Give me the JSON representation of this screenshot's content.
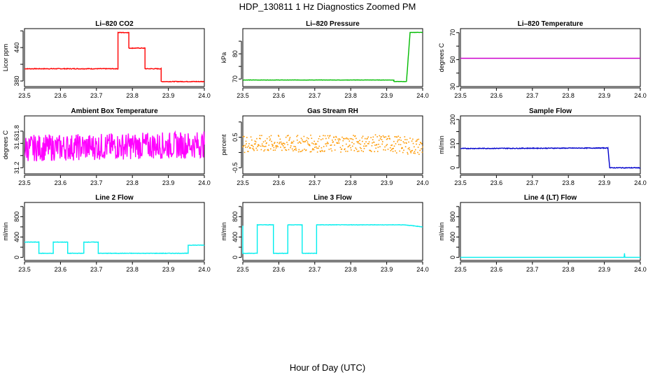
{
  "figure": {
    "title": "HDP_130811  1 Hz Diagnostics Zoomed PM",
    "xlabel": "Hour of Day (UTC)"
  },
  "chart_data": [
    {
      "type": "line",
      "title": "Li–820 CO2",
      "ylabel": "Licor ppm",
      "color": "#ff0000",
      "xlim": [
        23.5,
        24.0
      ],
      "ylim": [
        370,
        474
      ],
      "xticks": [
        "23.5",
        "23.6",
        "23.7",
        "23.8",
        "23.9",
        "24.0"
      ],
      "yticks": [
        {
          "v": 380,
          "label": "380"
        },
        {
          "v": 410,
          "label": ""
        },
        {
          "v": 440,
          "label": "440"
        },
        {
          "v": 470,
          "label": ""
        }
      ],
      "noise": 0.6,
      "series": [
        {
          "name": "CO2",
          "points": [
            [
              23.5,
              402
            ],
            [
              23.76,
              402
            ],
            [
              23.76,
              467
            ],
            [
              23.79,
              467
            ],
            [
              23.79,
              439
            ],
            [
              23.835,
              439
            ],
            [
              23.835,
              402
            ],
            [
              23.88,
              402
            ],
            [
              23.88,
              379
            ],
            [
              24.0,
              379
            ]
          ]
        }
      ]
    },
    {
      "type": "line",
      "title": "Li–820 Pressure",
      "ylabel": "kPa",
      "color": "#00bb00",
      "xlim": [
        23.5,
        24.0
      ],
      "ylim": [
        67,
        90
      ],
      "xticks": [
        "23.5",
        "23.6",
        "23.7",
        "23.8",
        "23.9",
        "24.0"
      ],
      "yticks": [
        {
          "v": 70,
          "label": "70"
        },
        {
          "v": 75,
          "label": ""
        },
        {
          "v": 80,
          "label": "80"
        },
        {
          "v": 85,
          "label": ""
        }
      ],
      "noise": 0.05,
      "series": [
        {
          "name": "Pressure",
          "points": [
            [
              23.5,
              69.6
            ],
            [
              23.92,
              69.6
            ],
            [
              23.92,
              69.0
            ],
            [
              23.955,
              69.0
            ],
            [
              23.965,
              88.5
            ],
            [
              24.0,
              88.5
            ]
          ]
        }
      ]
    },
    {
      "type": "line",
      "title": "Li–820 Temperature",
      "ylabel": "degrees C",
      "color": "#cc00cc",
      "xlim": [
        23.5,
        24.0
      ],
      "ylim": [
        30,
        73
      ],
      "xticks": [
        "23.5",
        "23.6",
        "23.7",
        "23.8",
        "23.9",
        "24.0"
      ],
      "yticks": [
        {
          "v": 30,
          "label": "30"
        },
        {
          "v": 40,
          "label": ""
        },
        {
          "v": 50,
          "label": "50"
        },
        {
          "v": 60,
          "label": ""
        },
        {
          "v": 70,
          "label": "70"
        }
      ],
      "noise": 0,
      "series": [
        {
          "name": "Temperature",
          "points": [
            [
              23.5,
              51
            ],
            [
              24.0,
              51
            ]
          ]
        }
      ]
    },
    {
      "type": "line",
      "title": "Ambient Box Temperature",
      "ylabel": "degrees C",
      "color": "#ff00ff",
      "xlim": [
        23.5,
        24.0
      ],
      "ylim": [
        31.1,
        32.05
      ],
      "xticks": [
        "23.5",
        "23.6",
        "23.7",
        "23.8",
        "23.9",
        "24.0"
      ],
      "yticks": [
        {
          "v": 31.2,
          "label": "31.2"
        },
        {
          "v": 31.4,
          "label": ""
        },
        {
          "v": 31.6,
          "label": "31.6"
        },
        {
          "v": 31.8,
          "label": "31.8"
        }
      ],
      "noise": 0.22,
      "series": [
        {
          "name": "Box Temperature",
          "points": [
            [
              23.5,
              31.52
            ],
            [
              24.0,
              31.58
            ]
          ]
        }
      ]
    },
    {
      "type": "scatter",
      "title": "Gas Stream RH",
      "ylabel": "percent",
      "color": "#ff9900",
      "xlim": [
        23.5,
        24.0
      ],
      "ylim": [
        -0.7,
        1.2
      ],
      "xticks": [
        "23.5",
        "23.6",
        "23.7",
        "23.8",
        "23.9",
        "24.0"
      ],
      "yticks": [
        {
          "v": -0.5,
          "label": "-0.5"
        },
        {
          "v": 0,
          "label": ""
        },
        {
          "v": 0.5,
          "label": "0.5"
        },
        {
          "v": 1.0,
          "label": ""
        }
      ],
      "noise": 0.28,
      "series": [
        {
          "name": "RH",
          "points": [
            [
              23.5,
              0.28
            ],
            [
              23.9,
              0.3
            ],
            [
              24.0,
              0.18
            ]
          ]
        }
      ]
    },
    {
      "type": "line",
      "title": "Sample Flow",
      "ylabel": "ml/min",
      "color": "#0000cc",
      "xlim": [
        23.5,
        24.0
      ],
      "ylim": [
        -25,
        215
      ],
      "xticks": [
        "23.5",
        "23.6",
        "23.7",
        "23.8",
        "23.9",
        "24.0"
      ],
      "yticks": [
        {
          "v": 0,
          "label": "0"
        },
        {
          "v": 50,
          "label": ""
        },
        {
          "v": 100,
          "label": "100"
        },
        {
          "v": 150,
          "label": ""
        },
        {
          "v": 200,
          "label": "200"
        }
      ],
      "noise": 1.5,
      "series": [
        {
          "name": "Sample Flow",
          "points": [
            [
              23.5,
              80
            ],
            [
              23.91,
              82
            ],
            [
              23.915,
              0
            ],
            [
              24.0,
              0
            ]
          ]
        }
      ]
    },
    {
      "type": "line",
      "title": "Line 2 Flow",
      "ylabel": "ml/min",
      "color": "#00eeee",
      "xlim": [
        23.5,
        24.0
      ],
      "ylim": [
        -60,
        1080
      ],
      "xticks": [
        "23.5",
        "23.6",
        "23.7",
        "23.8",
        "23.9",
        "24.0"
      ],
      "yticks": [
        {
          "v": 0,
          "label": "0"
        },
        {
          "v": 200,
          "label": ""
        },
        {
          "v": 400,
          "label": "400"
        },
        {
          "v": 600,
          "label": ""
        },
        {
          "v": 800,
          "label": "800"
        },
        {
          "v": 1000,
          "label": ""
        }
      ],
      "noise": 4,
      "series": [
        {
          "name": "Line 2",
          "points": [
            [
              23.5,
              300
            ],
            [
              23.54,
              300
            ],
            [
              23.54,
              80
            ],
            [
              23.58,
              80
            ],
            [
              23.58,
              300
            ],
            [
              23.62,
              300
            ],
            [
              23.62,
              80
            ],
            [
              23.665,
              80
            ],
            [
              23.665,
              300
            ],
            [
              23.705,
              300
            ],
            [
              23.705,
              80
            ],
            [
              23.955,
              80
            ],
            [
              23.955,
              240
            ],
            [
              24.0,
              240
            ]
          ]
        }
      ]
    },
    {
      "type": "line",
      "title": "Line 3 Flow",
      "ylabel": "ml/min",
      "color": "#00eeee",
      "xlim": [
        23.5,
        24.0
      ],
      "ylim": [
        -60,
        1080
      ],
      "xticks": [
        "23.5",
        "23.6",
        "23.7",
        "23.8",
        "23.9",
        "24.0"
      ],
      "yticks": [
        {
          "v": 0,
          "label": "0"
        },
        {
          "v": 200,
          "label": ""
        },
        {
          "v": 400,
          "label": "400"
        },
        {
          "v": 600,
          "label": ""
        },
        {
          "v": 800,
          "label": "800"
        },
        {
          "v": 1000,
          "label": ""
        }
      ],
      "noise": 4,
      "series": [
        {
          "name": "Line 3",
          "points": [
            [
              23.5,
              620
            ],
            [
              23.5,
              80
            ],
            [
              23.54,
              80
            ],
            [
              23.54,
              640
            ],
            [
              23.585,
              640
            ],
            [
              23.585,
              80
            ],
            [
              23.625,
              80
            ],
            [
              23.625,
              640
            ],
            [
              23.665,
              640
            ],
            [
              23.665,
              80
            ],
            [
              23.705,
              80
            ],
            [
              23.705,
              640
            ],
            [
              23.95,
              640
            ],
            [
              24.0,
              600
            ]
          ]
        }
      ]
    },
    {
      "type": "line",
      "title": "Line 4 (LT) Flow",
      "ylabel": "ml/min",
      "color": "#00eeee",
      "xlim": [
        23.5,
        24.0
      ],
      "ylim": [
        -60,
        1080
      ],
      "xticks": [
        "23.5",
        "23.6",
        "23.7",
        "23.8",
        "23.9",
        "24.0"
      ],
      "yticks": [
        {
          "v": 0,
          "label": "0"
        },
        {
          "v": 200,
          "label": ""
        },
        {
          "v": 400,
          "label": "400"
        },
        {
          "v": 600,
          "label": ""
        },
        {
          "v": 800,
          "label": "800"
        },
        {
          "v": 1000,
          "label": ""
        }
      ],
      "noise": 0,
      "series": [
        {
          "name": "Line 4",
          "points": [
            [
              23.5,
              0
            ],
            [
              23.955,
              0
            ],
            [
              23.956,
              80
            ],
            [
              23.957,
              0
            ],
            [
              24.0,
              0
            ]
          ]
        }
      ]
    }
  ]
}
